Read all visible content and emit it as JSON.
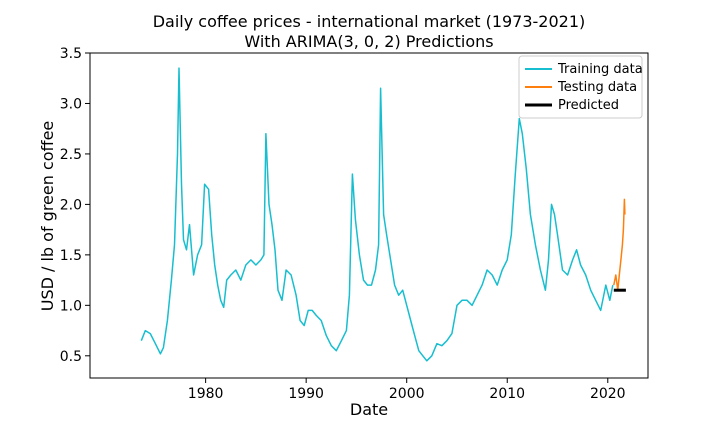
{
  "chart_data": {
    "type": "line",
    "title": "Daily coffee prices - international market (1973-2021)",
    "subtitle": "With ARIMA(3, 0, 2) Predictions",
    "xlabel": "Date",
    "ylabel": "USD / lb of green coffee",
    "xlim": [
      1968.5,
      2024.0
    ],
    "ylim": [
      0.28,
      3.5
    ],
    "x_ticks": [
      1980,
      1990,
      2000,
      2010,
      2020
    ],
    "y_ticks": [
      0.5,
      1.0,
      1.5,
      2.0,
      2.5,
      3.0,
      3.5
    ],
    "x_tick_labels": [
      "1980",
      "1990",
      "2000",
      "2010",
      "2020"
    ],
    "y_tick_labels": [
      "0.5",
      "1.0",
      "1.5",
      "2.0",
      "2.5",
      "3.0",
      "3.5"
    ],
    "grid": false,
    "legend_position": "top-right",
    "series": [
      {
        "name": "Training data",
        "color": "#17becf",
        "points": [
          [
            1973.6,
            0.65
          ],
          [
            1974.0,
            0.75
          ],
          [
            1974.5,
            0.72
          ],
          [
            1975.0,
            0.62
          ],
          [
            1975.5,
            0.52
          ],
          [
            1975.8,
            0.58
          ],
          [
            1976.2,
            0.85
          ],
          [
            1976.6,
            1.25
          ],
          [
            1976.9,
            1.6
          ],
          [
            1977.2,
            2.5
          ],
          [
            1977.35,
            3.35
          ],
          [
            1977.6,
            2.2
          ],
          [
            1977.8,
            1.65
          ],
          [
            1978.1,
            1.55
          ],
          [
            1978.4,
            1.8
          ],
          [
            1978.8,
            1.3
          ],
          [
            1979.2,
            1.5
          ],
          [
            1979.6,
            1.6
          ],
          [
            1979.9,
            2.2
          ],
          [
            1980.3,
            2.15
          ],
          [
            1980.6,
            1.7
          ],
          [
            1980.9,
            1.4
          ],
          [
            1981.2,
            1.2
          ],
          [
            1981.5,
            1.05
          ],
          [
            1981.8,
            0.98
          ],
          [
            1982.1,
            1.25
          ],
          [
            1982.5,
            1.3
          ],
          [
            1983.0,
            1.35
          ],
          [
            1983.5,
            1.25
          ],
          [
            1984.0,
            1.4
          ],
          [
            1984.5,
            1.45
          ],
          [
            1985.0,
            1.4
          ],
          [
            1985.5,
            1.45
          ],
          [
            1985.8,
            1.5
          ],
          [
            1986.0,
            2.7
          ],
          [
            1986.3,
            2.0
          ],
          [
            1986.6,
            1.8
          ],
          [
            1986.9,
            1.55
          ],
          [
            1987.2,
            1.15
          ],
          [
            1987.6,
            1.05
          ],
          [
            1988.0,
            1.35
          ],
          [
            1988.5,
            1.3
          ],
          [
            1989.0,
            1.1
          ],
          [
            1989.4,
            0.85
          ],
          [
            1989.8,
            0.8
          ],
          [
            1990.2,
            0.95
          ],
          [
            1990.6,
            0.95
          ],
          [
            1991.0,
            0.9
          ],
          [
            1991.5,
            0.85
          ],
          [
            1992.0,
            0.7
          ],
          [
            1992.5,
            0.6
          ],
          [
            1993.0,
            0.55
          ],
          [
            1993.5,
            0.65
          ],
          [
            1994.0,
            0.75
          ],
          [
            1994.3,
            1.1
          ],
          [
            1994.6,
            2.3
          ],
          [
            1994.9,
            1.85
          ],
          [
            1995.3,
            1.5
          ],
          [
            1995.7,
            1.25
          ],
          [
            1996.1,
            1.2
          ],
          [
            1996.5,
            1.2
          ],
          [
            1996.9,
            1.35
          ],
          [
            1997.2,
            1.6
          ],
          [
            1997.4,
            3.15
          ],
          [
            1997.7,
            1.9
          ],
          [
            1998.0,
            1.7
          ],
          [
            1998.4,
            1.45
          ],
          [
            1998.8,
            1.2
          ],
          [
            1999.2,
            1.1
          ],
          [
            1999.6,
            1.15
          ],
          [
            2000.0,
            1.0
          ],
          [
            2000.4,
            0.85
          ],
          [
            2000.8,
            0.7
          ],
          [
            2001.2,
            0.55
          ],
          [
            2001.6,
            0.5
          ],
          [
            2002.0,
            0.45
          ],
          [
            2002.5,
            0.5
          ],
          [
            2003.0,
            0.62
          ],
          [
            2003.5,
            0.6
          ],
          [
            2004.0,
            0.65
          ],
          [
            2004.5,
            0.72
          ],
          [
            2005.0,
            1.0
          ],
          [
            2005.5,
            1.05
          ],
          [
            2006.0,
            1.05
          ],
          [
            2006.5,
            1.0
          ],
          [
            2007.0,
            1.1
          ],
          [
            2007.5,
            1.2
          ],
          [
            2008.0,
            1.35
          ],
          [
            2008.5,
            1.3
          ],
          [
            2009.0,
            1.2
          ],
          [
            2009.5,
            1.35
          ],
          [
            2010.0,
            1.45
          ],
          [
            2010.4,
            1.7
          ],
          [
            2010.8,
            2.3
          ],
          [
            2011.2,
            2.85
          ],
          [
            2011.5,
            2.7
          ],
          [
            2011.9,
            2.35
          ],
          [
            2012.3,
            1.9
          ],
          [
            2012.8,
            1.6
          ],
          [
            2013.3,
            1.35
          ],
          [
            2013.8,
            1.15
          ],
          [
            2014.1,
            1.45
          ],
          [
            2014.4,
            2.0
          ],
          [
            2014.7,
            1.9
          ],
          [
            2015.0,
            1.7
          ],
          [
            2015.5,
            1.35
          ],
          [
            2016.0,
            1.3
          ],
          [
            2016.5,
            1.45
          ],
          [
            2016.9,
            1.55
          ],
          [
            2017.3,
            1.4
          ],
          [
            2017.8,
            1.3
          ],
          [
            2018.3,
            1.15
          ],
          [
            2018.8,
            1.05
          ],
          [
            2019.3,
            0.95
          ],
          [
            2019.8,
            1.2
          ],
          [
            2020.2,
            1.05
          ],
          [
            2020.5,
            1.2
          ]
        ]
      },
      {
        "name": "Testing data",
        "color": "#ff7f0e",
        "points": [
          [
            2020.6,
            1.2
          ],
          [
            2020.8,
            1.3
          ],
          [
            2021.0,
            1.15
          ],
          [
            2021.15,
            1.3
          ],
          [
            2021.3,
            1.45
          ],
          [
            2021.45,
            1.6
          ],
          [
            2021.55,
            1.75
          ],
          [
            2021.65,
            2.05
          ],
          [
            2021.7,
            1.9
          ]
        ]
      },
      {
        "name": "Predicted",
        "color": "#000000",
        "points": [
          [
            2020.6,
            1.15
          ],
          [
            2021.8,
            1.15
          ]
        ]
      }
    ]
  }
}
